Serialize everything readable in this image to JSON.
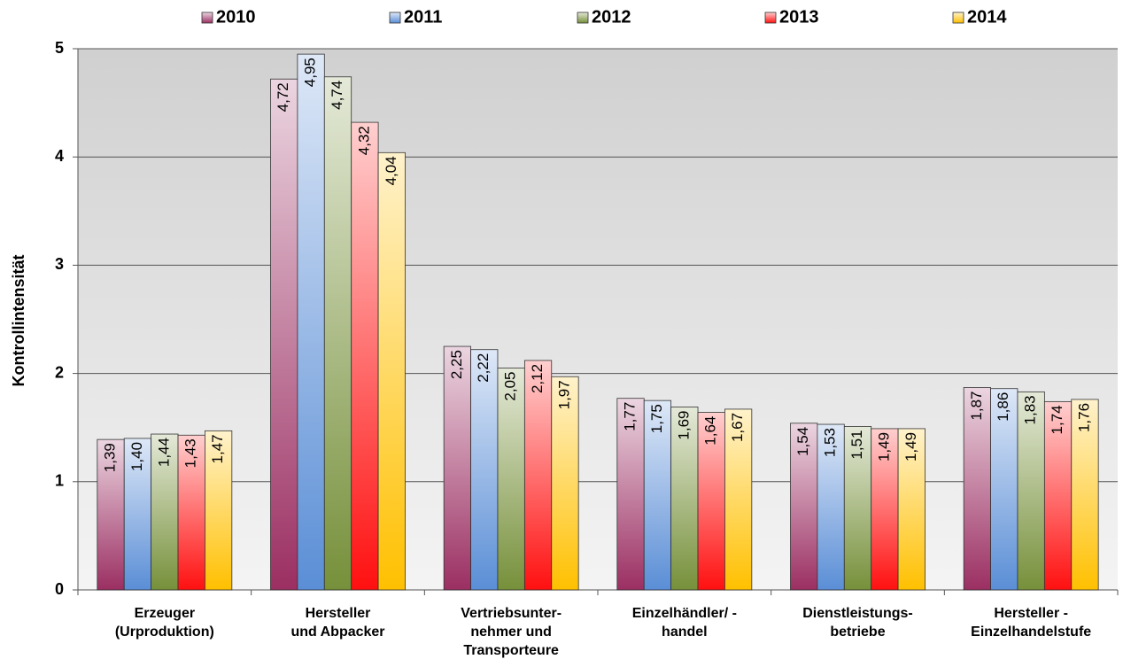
{
  "chart_data": {
    "type": "bar",
    "y_label": "Kontrollintensität",
    "categories": [
      "Erzeuger\n(Urproduktion)",
      "Hersteller\nund Abpacker",
      "Vertriebsunter-\nnehmer und\nTransporteure",
      "Einzelhändler/ -\nhandel",
      "Dienstleistungs-\nbetriebe",
      "Hersteller -\nEinzelhandelstufe"
    ],
    "series": [
      {
        "name": "2010",
        "color": "#9b2f62",
        "values": [
          1.39,
          4.72,
          2.25,
          1.77,
          1.54,
          1.87
        ],
        "value_labels": [
          "1,39",
          "4,72",
          "2,25",
          "1,77",
          "1,54",
          "1,87"
        ]
      },
      {
        "name": "2011",
        "color": "#5a8ed6",
        "values": [
          1.4,
          4.95,
          2.22,
          1.75,
          1.53,
          1.86
        ],
        "value_labels": [
          "1,40",
          "4,95",
          "2,22",
          "1,75",
          "1,53",
          "1,86"
        ]
      },
      {
        "name": "2012",
        "color": "#76903a",
        "values": [
          1.44,
          4.74,
          2.05,
          1.69,
          1.51,
          1.83
        ],
        "value_labels": [
          "1,44",
          "4,74",
          "2,05",
          "1,69",
          "1,51",
          "1,83"
        ]
      },
      {
        "name": "2013",
        "color": "#ff1010",
        "values": [
          1.43,
          4.32,
          2.12,
          1.64,
          1.49,
          1.74
        ],
        "value_labels": [
          "1,43",
          "4,32",
          "2,12",
          "1,64",
          "1,49",
          "1,74"
        ]
      },
      {
        "name": "2014",
        "color": "#ffc000",
        "values": [
          1.47,
          4.04,
          1.97,
          1.67,
          1.49,
          1.76
        ],
        "value_labels": [
          "1,47",
          "4,04",
          "1,97",
          "1,67",
          "1,49",
          "1,76"
        ]
      }
    ],
    "ylim": [
      0,
      5
    ],
    "yticks": [
      0,
      1,
      2,
      3,
      4,
      5
    ],
    "grid": true,
    "legend": "top"
  }
}
